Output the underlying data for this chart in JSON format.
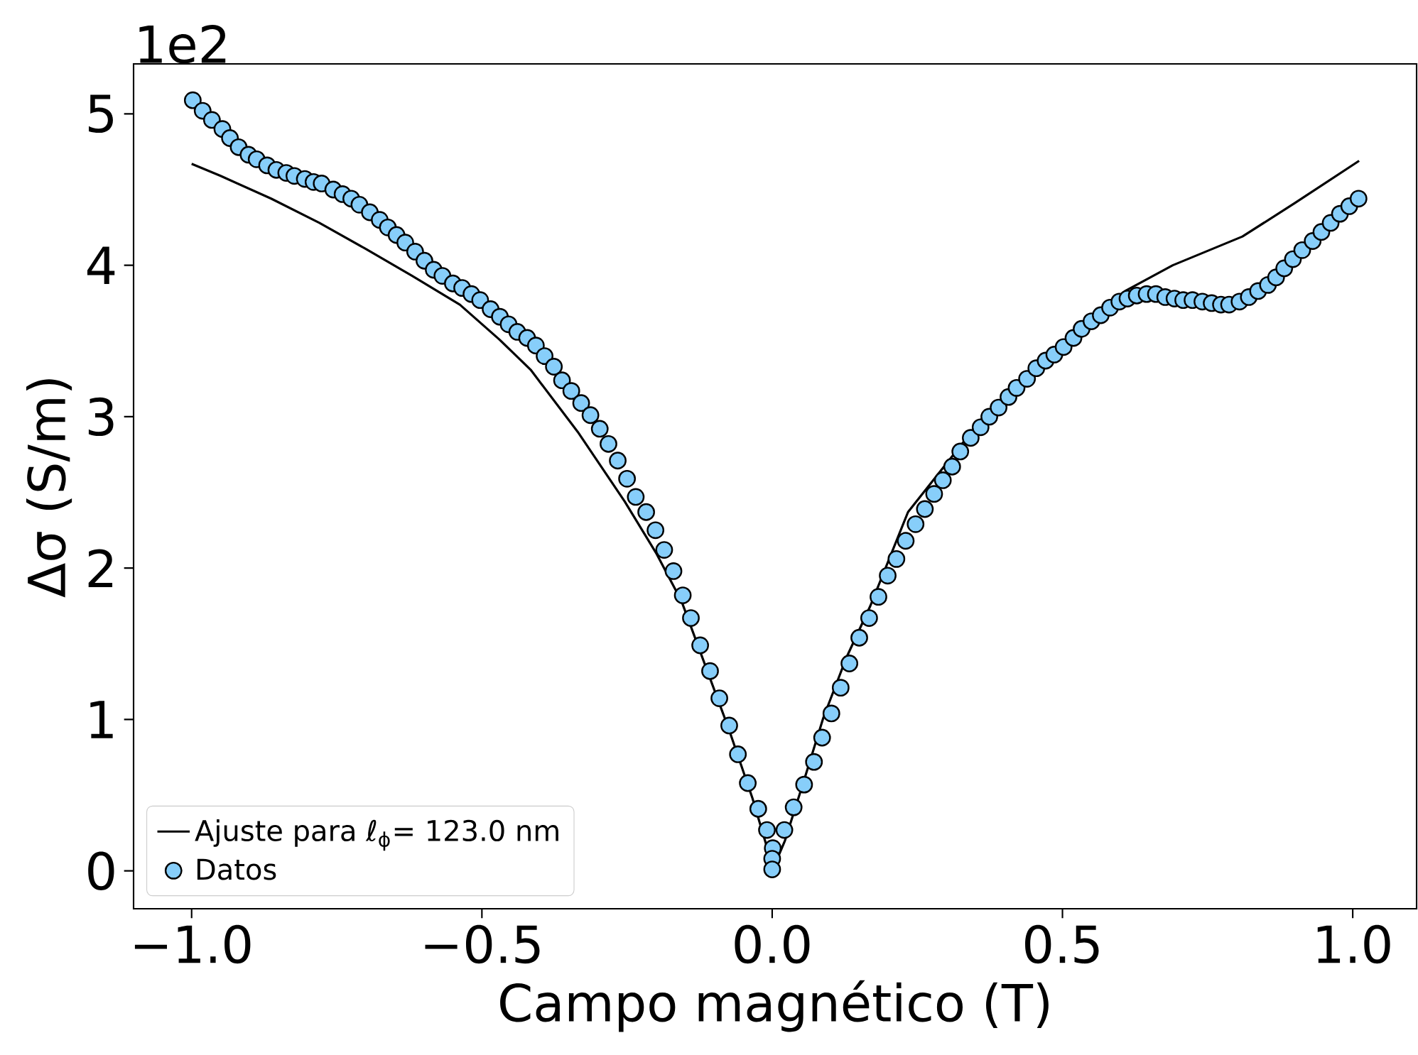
{
  "chart_data": {
    "type": "scatter",
    "xlabel": "Campo magnético (T)",
    "ylabel": "Δσ (S/m)",
    "annotations": [
      "1e2"
    ],
    "xlim": [
      -1.1,
      1.11
    ],
    "ylim": [
      -0.25,
      5.33
    ],
    "xticks": [
      {
        "value": -1.0,
        "label": "−1.0"
      },
      {
        "value": -0.5,
        "label": "−0.5"
      },
      {
        "value": 0.0,
        "label": "0.0"
      },
      {
        "value": 0.5,
        "label": "0.5"
      },
      {
        "value": 1.0,
        "label": "1.0"
      }
    ],
    "yticks": [
      0,
      1,
      2,
      3,
      4,
      5
    ],
    "legend": "bottom left",
    "series": [
      {
        "name": "Ajuste para ℓ$_{ϕ}$= 123.0 nm",
        "type": "line",
        "color": "#000000",
        "marker": "none",
        "line_style": "solid",
        "x": [
          -1.0,
          -0.95,
          -0.863,
          -0.78,
          -0.701,
          -0.62,
          -0.538,
          -0.47,
          -0.416,
          -0.335,
          -0.254,
          -0.2,
          -0.156,
          -0.075,
          -0.034,
          -0.01,
          0.0,
          0.022,
          0.055,
          0.088,
          0.128,
          0.169,
          0.234,
          0.364,
          0.486,
          0.608,
          0.69,
          0.81,
          0.9,
          1.011
        ],
        "values": [
          4.67,
          4.59,
          4.44,
          4.28,
          4.11,
          3.93,
          3.74,
          3.51,
          3.31,
          2.9,
          2.44,
          2.1,
          1.78,
          0.94,
          0.48,
          0.17,
          0.0,
          0.2,
          0.6,
          1.01,
          1.41,
          1.75,
          2.37,
          3.0,
          3.44,
          3.83,
          4.0,
          4.19,
          4.41,
          4.69
        ]
      },
      {
        "name": "Datos",
        "type": "scatter",
        "color": "#87cefa",
        "marker": "circle",
        "x": [
          -0.998,
          -0.981,
          -0.965,
          -0.947,
          -0.934,
          -0.919,
          -0.902,
          -0.888,
          -0.87,
          -0.854,
          -0.837,
          -0.823,
          -0.805,
          -0.79,
          -0.776,
          -0.756,
          -0.74,
          -0.725,
          -0.711,
          -0.693,
          -0.676,
          -0.662,
          -0.647,
          -0.632,
          -0.615,
          -0.599,
          -0.583,
          -0.568,
          -0.55,
          -0.534,
          -0.518,
          -0.503,
          -0.485,
          -0.469,
          -0.454,
          -0.439,
          -0.422,
          -0.407,
          -0.392,
          -0.376,
          -0.362,
          -0.346,
          -0.329,
          -0.313,
          -0.297,
          -0.282,
          -0.266,
          -0.25,
          -0.235,
          -0.217,
          -0.201,
          -0.186,
          -0.17,
          -0.154,
          -0.14,
          -0.124,
          -0.107,
          -0.091,
          -0.074,
          -0.059,
          -0.042,
          -0.024,
          -0.009,
          0.001,
          0.0,
          0.0,
          0.021,
          0.037,
          0.055,
          0.072,
          0.086,
          0.102,
          0.118,
          0.133,
          0.15,
          0.167,
          0.183,
          0.199,
          0.214,
          0.23,
          0.247,
          0.263,
          0.279,
          0.294,
          0.31,
          0.324,
          0.342,
          0.359,
          0.374,
          0.39,
          0.407,
          0.421,
          0.439,
          0.455,
          0.471,
          0.486,
          0.502,
          0.519,
          0.533,
          0.55,
          0.566,
          0.582,
          0.598,
          0.612,
          0.628,
          0.645,
          0.661,
          0.677,
          0.693,
          0.708,
          0.724,
          0.741,
          0.757,
          0.773,
          0.787,
          0.805,
          0.821,
          0.837,
          0.854,
          0.868,
          0.882,
          0.897,
          0.913,
          0.931,
          0.946,
          0.962,
          0.978,
          0.994,
          1.01
        ],
        "values": [
          5.09,
          5.02,
          4.96,
          4.9,
          4.84,
          4.78,
          4.73,
          4.7,
          4.66,
          4.63,
          4.61,
          4.59,
          4.57,
          4.55,
          4.54,
          4.5,
          4.47,
          4.44,
          4.4,
          4.35,
          4.3,
          4.25,
          4.2,
          4.15,
          4.09,
          4.03,
          3.97,
          3.93,
          3.88,
          3.85,
          3.81,
          3.77,
          3.71,
          3.66,
          3.61,
          3.56,
          3.52,
          3.47,
          3.4,
          3.33,
          3.24,
          3.17,
          3.09,
          3.01,
          2.92,
          2.82,
          2.71,
          2.59,
          2.47,
          2.37,
          2.25,
          2.12,
          1.98,
          1.82,
          1.67,
          1.49,
          1.32,
          1.14,
          0.96,
          0.77,
          0.58,
          0.41,
          0.27,
          0.15,
          0.08,
          0.01,
          0.27,
          0.42,
          0.57,
          0.72,
          0.88,
          1.04,
          1.21,
          1.37,
          1.54,
          1.67,
          1.81,
          1.95,
          2.06,
          2.18,
          2.29,
          2.39,
          2.49,
          2.58,
          2.67,
          2.77,
          2.86,
          2.93,
          3.0,
          3.06,
          3.13,
          3.19,
          3.25,
          3.32,
          3.37,
          3.41,
          3.46,
          3.52,
          3.58,
          3.63,
          3.67,
          3.72,
          3.76,
          3.78,
          3.8,
          3.81,
          3.81,
          3.79,
          3.78,
          3.77,
          3.77,
          3.76,
          3.75,
          3.74,
          3.74,
          3.76,
          3.79,
          3.83,
          3.87,
          3.92,
          3.98,
          4.04,
          4.1,
          4.16,
          4.22,
          4.28,
          4.34,
          4.39,
          4.44
        ]
      }
    ]
  }
}
